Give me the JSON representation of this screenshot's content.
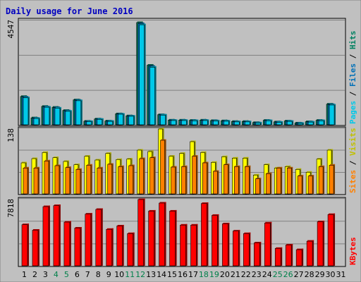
{
  "chart_data": {
    "type": "bar",
    "title": "Daily usage for June 2016",
    "days": [
      "1",
      "2",
      "3",
      "4",
      "5",
      "6",
      "7",
      "8",
      "9",
      "10",
      "11",
      "12",
      "13",
      "14",
      "15",
      "16",
      "17",
      "18",
      "19",
      "20",
      "21",
      "22",
      "23",
      "24",
      "25",
      "26",
      "27",
      "28",
      "29",
      "30",
      "31"
    ],
    "weekend_days": [
      "4",
      "5",
      "11",
      "12",
      "18",
      "19",
      "25",
      "26"
    ],
    "colors": {
      "pages": "#00c8e8",
      "files": "#0070b8",
      "hits": "#008060",
      "visits": "#ffff00",
      "sites": "#ff8000",
      "kbytes": "#ff0000",
      "weekend_tick": "#00804a",
      "title": "#0000c0"
    },
    "panels": [
      {
        "id": "top",
        "max_label": "4547",
        "ymax": 4547,
        "legend": [
          {
            "text": "Pages",
            "color": "#00c8e8"
          },
          {
            "text": " / ",
            "color": "#000000"
          },
          {
            "text": "Files",
            "color": "#0070b8"
          },
          {
            "text": " / ",
            "color": "#000000"
          },
          {
            "text": "Hits",
            "color": "#008060"
          }
        ],
        "series": [
          {
            "name": "Hits",
            "color": "#008060",
            "values": [
              1260,
              310,
              820,
              780,
              640,
              1110,
              160,
              260,
              170,
              490,
              400,
              4547,
              2650,
              450,
              210,
              210,
              200,
              210,
              190,
              180,
              150,
              150,
              100,
              200,
              130,
              170,
              80,
              140,
              200,
              920,
              0
            ]
          },
          {
            "name": "Files",
            "color": "#0070b8",
            "values": [
              1230,
              290,
              800,
              760,
              620,
              1090,
              150,
              250,
              160,
              480,
              390,
              4500,
              2600,
              440,
              200,
              200,
              190,
              200,
              180,
              170,
              140,
              140,
              90,
              190,
              120,
              160,
              70,
              130,
              190,
              900,
              0
            ]
          },
          {
            "name": "Pages",
            "color": "#00c8e8",
            "values": [
              1200,
              280,
              780,
              740,
              600,
              1070,
              140,
              240,
              150,
              470,
              380,
              4450,
              2560,
              430,
              190,
              190,
              180,
              190,
              170,
              160,
              130,
              130,
              80,
              180,
              110,
              150,
              60,
              120,
              180,
              880,
              0
            ]
          }
        ]
      },
      {
        "id": "middle",
        "max_label": "138",
        "ymax": 138,
        "legend": [
          {
            "text": "Sites",
            "color": "#ff8000"
          },
          {
            "text": " / ",
            "color": "#000000"
          },
          {
            "text": "Visits",
            "color": "#c0c000"
          }
        ],
        "series": [
          {
            "name": "Visits",
            "color": "#ffff00",
            "values": [
              66,
              75,
              88,
              77,
              69,
              62,
              80,
              72,
              86,
              73,
              74,
              93,
              90,
              138,
              80,
              86,
              111,
              88,
              67,
              79,
              76,
              76,
              40,
              62,
              55,
              58,
              52,
              46,
              74,
              93,
              0
            ]
          },
          {
            "name": "Sites",
            "color": "#ff8000",
            "values": [
              55,
              55,
              70,
              60,
              56,
              52,
              61,
              55,
              63,
              58,
              60,
              75,
              77,
              114,
              57,
              58,
              80,
              66,
              48,
              62,
              58,
              58,
              32,
              43,
              55,
              55,
              38,
              38,
              58,
              61,
              0
            ]
          }
        ]
      },
      {
        "id": "bottom",
        "max_label": "7818",
        "ymax": 7818,
        "legend": [
          {
            "text": "KBytes",
            "color": "#ff0000"
          }
        ],
        "series": [
          {
            "name": "KBytes",
            "color": "#ff0000",
            "values": [
              4850,
              4200,
              6980,
              7100,
              5150,
              4450,
              6100,
              6650,
              4300,
              4700,
              3800,
              7818,
              6450,
              7400,
              6450,
              4800,
              4800,
              7350,
              5950,
              4950,
              4100,
              3800,
              2700,
              5050,
              2050,
              2450,
              1900,
              2900,
              5200,
              6050,
              0
            ]
          }
        ]
      }
    ]
  }
}
